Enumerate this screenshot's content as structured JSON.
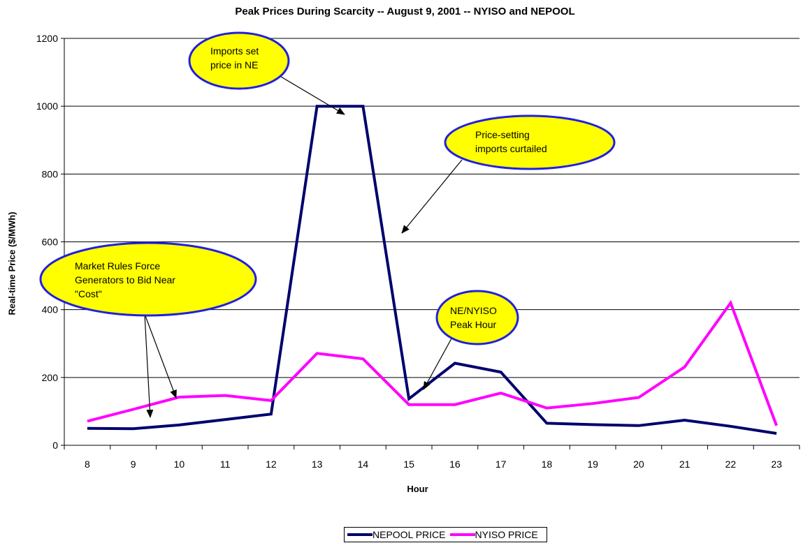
{
  "chart_data": {
    "type": "line",
    "title": "Peak Prices During Scarcity -- August 9, 2001 -- NYISO and NEPOOL",
    "xlabel": "Hour",
    "ylabel": "Real-time Price ($/MWh)",
    "x": [
      8,
      9,
      10,
      11,
      12,
      13,
      14,
      15,
      16,
      17,
      18,
      19,
      20,
      21,
      22,
      23
    ],
    "ylim": [
      0,
      1200
    ],
    "yticks": [
      0,
      200,
      400,
      600,
      800,
      1000,
      1200
    ],
    "grid": true,
    "legend_position": "bottom",
    "series": [
      {
        "name": "NEPOOL PRICE",
        "color": "#00006e",
        "values": [
          50,
          49,
          60,
          76,
          92,
          1000,
          1000,
          137,
          242,
          216,
          65,
          61,
          58,
          74,
          56,
          35
        ]
      },
      {
        "name": "NYISO PRICE",
        "color": "#ff00ff",
        "values": [
          71,
          106,
          142,
          147,
          132,
          271,
          255,
          120,
          120,
          154,
          110,
          123,
          141,
          231,
          420,
          58
        ]
      }
    ],
    "annotations": [
      {
        "id": "imports",
        "lines": [
          "Imports set",
          "price in NE"
        ]
      },
      {
        "id": "curtailed",
        "lines": [
          "Price-setting",
          "imports curtailed"
        ]
      },
      {
        "id": "market",
        "lines": [
          "Market Rules Force",
          "Generators to Bid Near",
          "\"Cost\""
        ]
      },
      {
        "id": "peak",
        "lines": [
          "NE/NYISO",
          "Peak Hour"
        ]
      }
    ]
  }
}
